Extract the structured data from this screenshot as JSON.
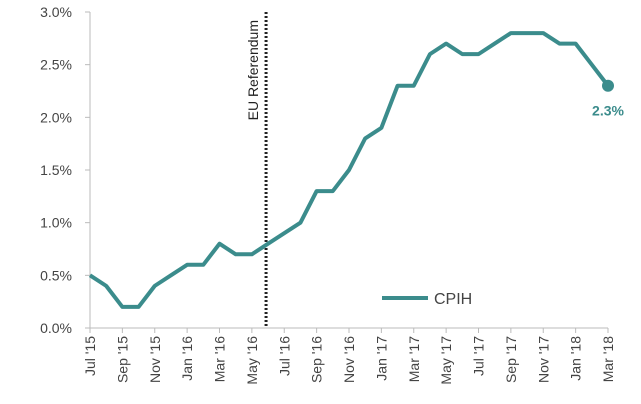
{
  "chart_data": {
    "type": "line",
    "categories": [
      "Jul '15",
      null,
      "Sep '15",
      null,
      "Nov '15",
      null,
      "Jan '16",
      null,
      "Mar '16",
      null,
      "May '16",
      null,
      "Jul '16",
      null,
      "Sep '16",
      null,
      "Nov '16",
      null,
      "Jan '17",
      null,
      "Mar '17",
      null,
      "May '17",
      null,
      "Jul '17",
      null,
      "Sep '17",
      null,
      "Nov '17",
      null,
      "Jan '18",
      null,
      "Mar '18"
    ],
    "series": [
      {
        "name": "CPIH",
        "color": "#3b8c8c",
        "values": [
          0.5,
          0.4,
          0.2,
          0.2,
          0.4,
          0.5,
          0.6,
          0.6,
          0.8,
          0.7,
          0.7,
          0.8,
          0.9,
          1.0,
          1.3,
          1.3,
          1.5,
          1.8,
          1.9,
          2.3,
          2.3,
          2.6,
          2.7,
          2.6,
          2.6,
          2.7,
          2.8,
          2.8,
          2.8,
          2.7,
          2.7,
          2.5,
          2.3
        ],
        "value_labels": [
          null,
          null,
          null,
          null,
          null,
          null,
          null,
          null,
          null,
          null,
          null,
          null,
          null,
          null,
          null,
          null,
          null,
          null,
          null,
          null,
          null,
          null,
          null,
          null,
          null,
          null,
          null,
          null,
          null,
          null,
          null,
          null,
          "2.3%"
        ]
      }
    ],
    "ylim": [
      0,
      3
    ],
    "yticks": [
      {
        "value": 0,
        "label": "0.0%"
      },
      {
        "value": 0.5,
        "label": "0.5%"
      },
      {
        "value": 1,
        "label": "1.0%"
      },
      {
        "value": 1.5,
        "label": "1.5%"
      },
      {
        "value": 2,
        "label": "2.0%"
      },
      {
        "value": 2.5,
        "label": "2.5%"
      },
      {
        "value": 3,
        "label": "3.0%"
      }
    ],
    "annotation": "EU Referendum",
    "legend": "lower right",
    "grid": false
  }
}
